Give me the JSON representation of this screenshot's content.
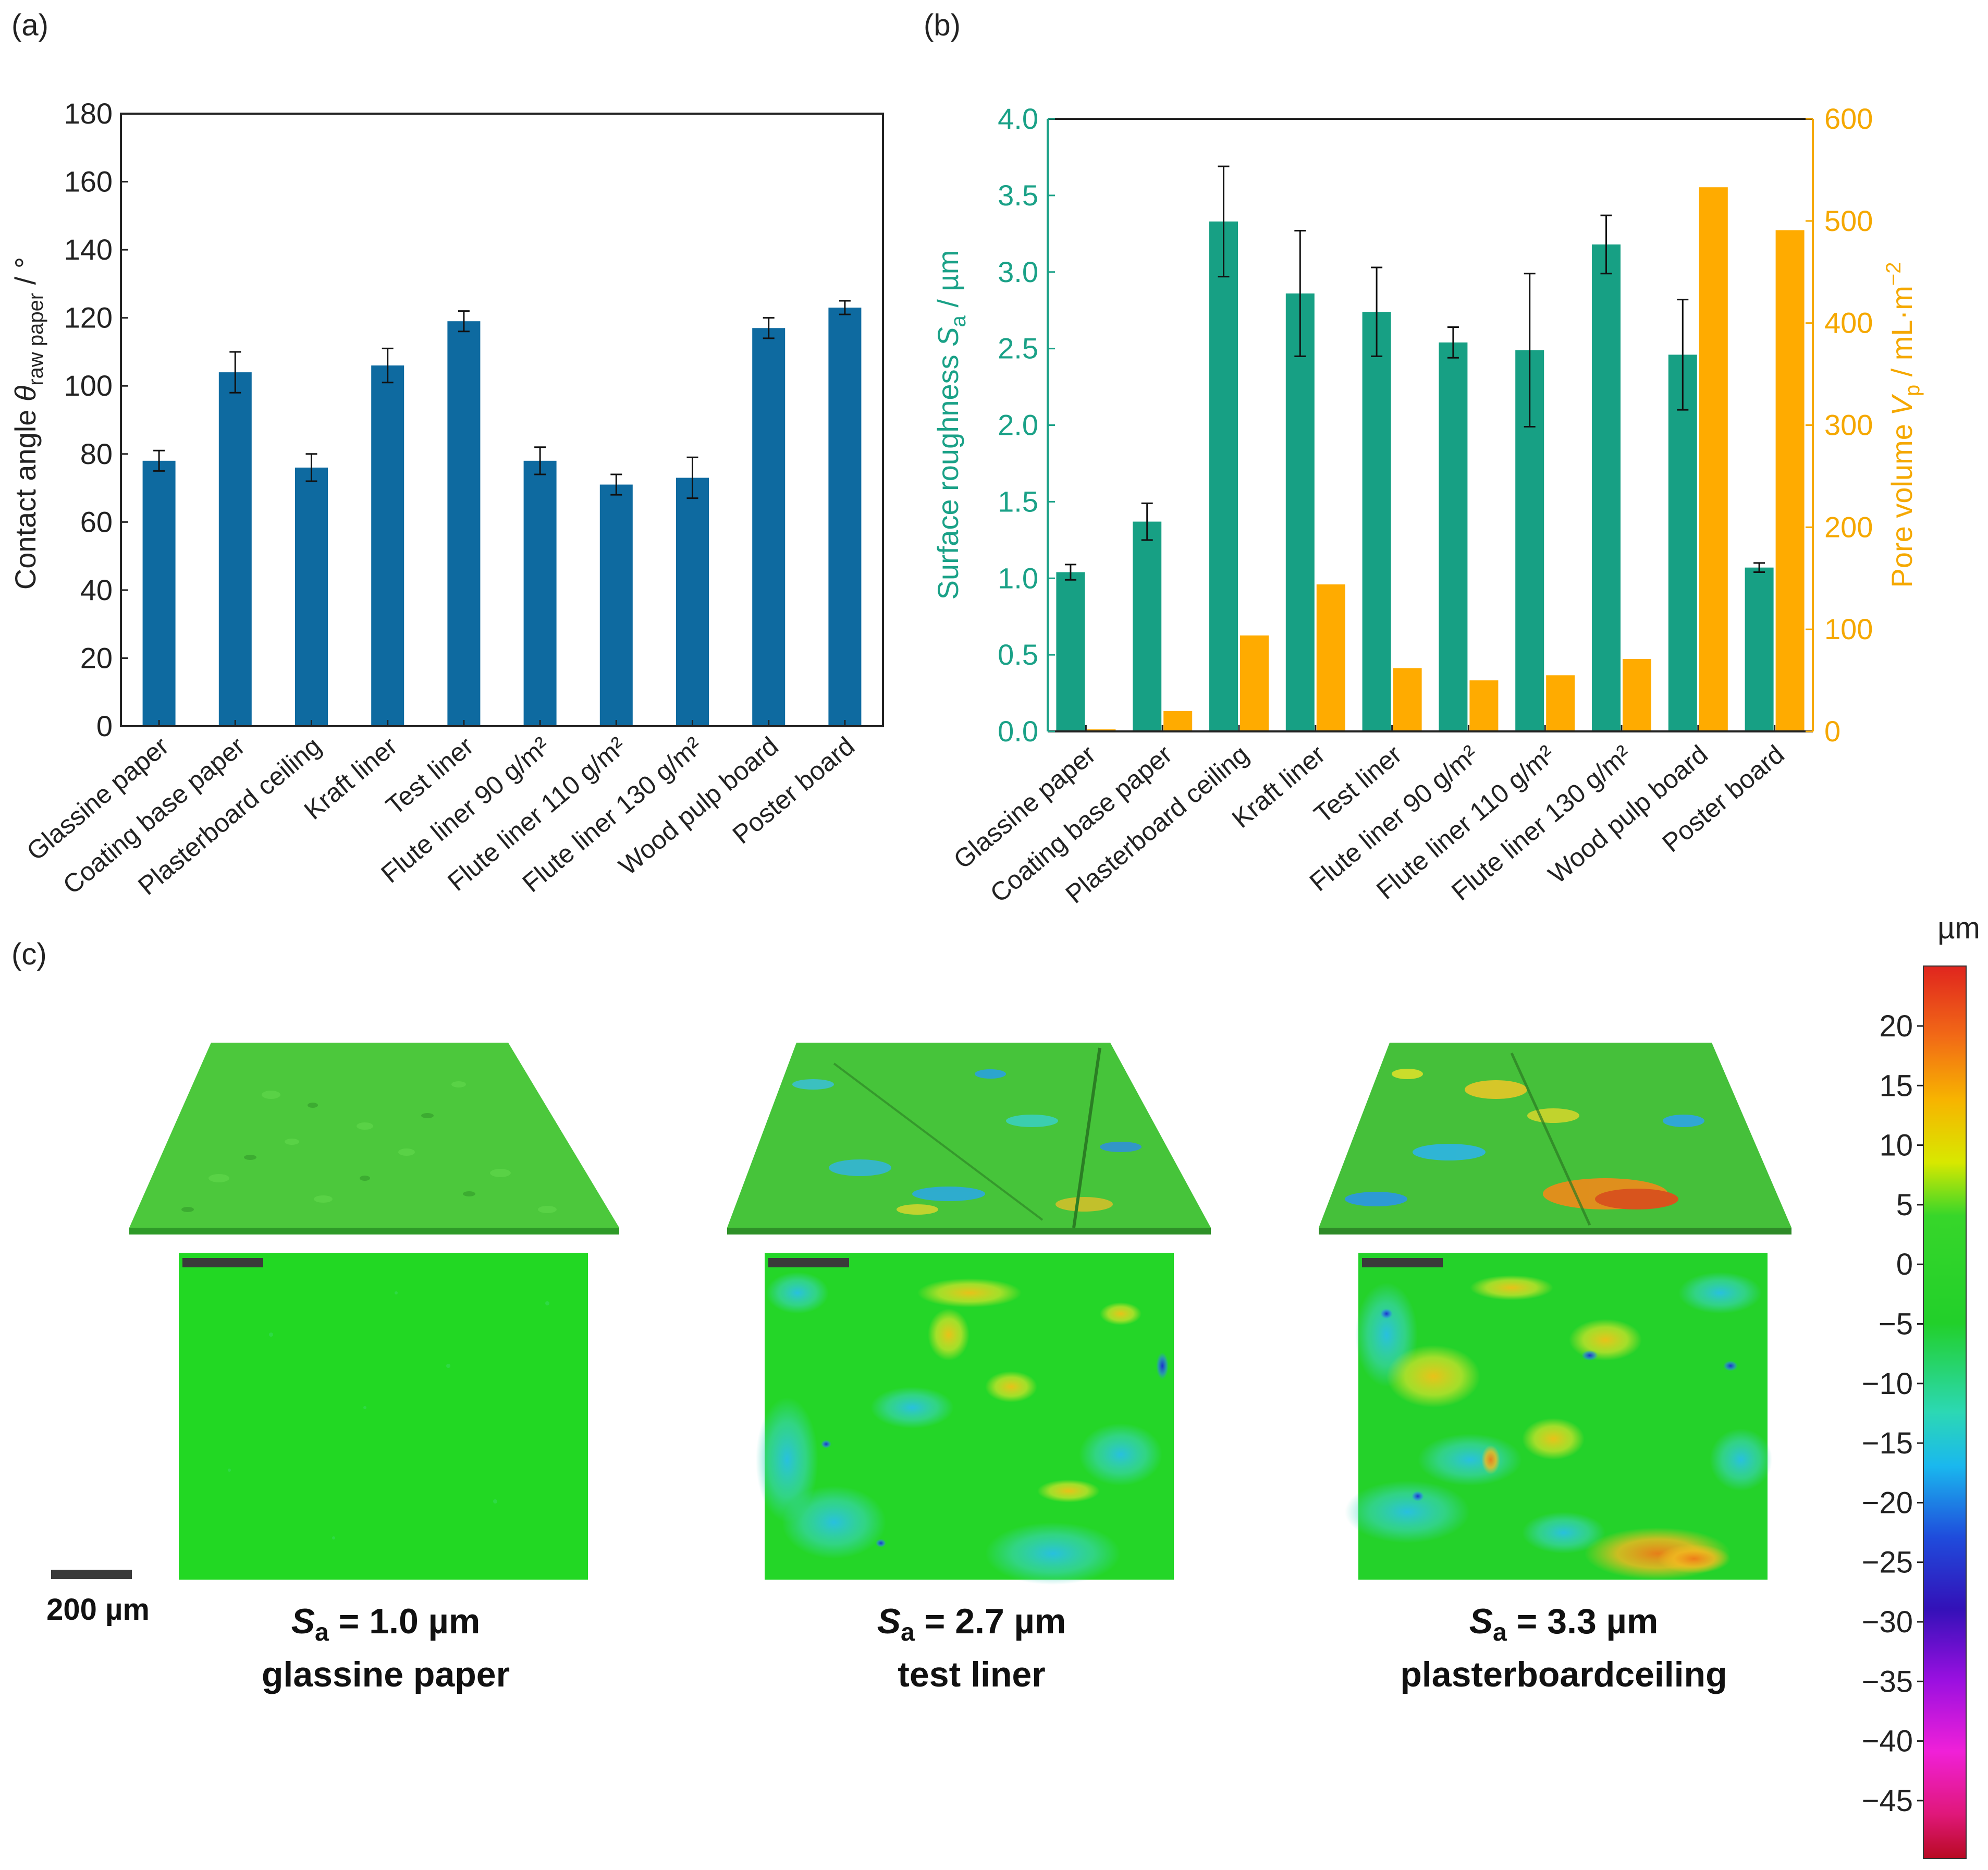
{
  "panels": {
    "a": "(a)",
    "b": "(b)",
    "c": "(c)"
  },
  "colors": {
    "blue_bar": "#0e6aa0",
    "green_bar": "#17a084",
    "orange_bar": "#ffab00",
    "green_axis": "#1aa187",
    "orange_axis": "#f5a800"
  },
  "chart_data": [
    {
      "type": "bar",
      "panel": "a",
      "categories": [
        "Glassine paper",
        "Coating base paper",
        "Plasterboard ceiling",
        "Kraft liner",
        "Test liner",
        "Flute liner 90 g/m²",
        "Flute liner 110 g/m²",
        "Flute liner 130 g/m²",
        "Wood pulp board",
        "Poster board"
      ],
      "values": [
        78,
        104,
        76,
        106,
        119,
        78,
        71,
        73,
        117,
        123
      ],
      "errors": [
        3,
        6,
        4,
        5,
        3,
        4,
        3,
        6,
        3,
        2
      ],
      "ylabel_main": "Contact angle ",
      "ylabel_symbol": "θ",
      "ylabel_sub": "raw paper",
      "ylabel_unit": " / °",
      "ylim": [
        0,
        180
      ],
      "yticks": [
        0,
        20,
        40,
        60,
        80,
        100,
        120,
        140,
        160,
        180
      ],
      "grid": false
    },
    {
      "type": "bar",
      "panel": "b",
      "categories": [
        "Glassine paper",
        "Coating base paper",
        "Plasterboard ceiling",
        "Kraft liner",
        "Test liner",
        "Flute liner 90 g/m²",
        "Flute liner 110 g/m²",
        "Flute liner 130 g/m²",
        "Wood pulp board",
        "Poster board"
      ],
      "series": [
        {
          "axis": "left",
          "values": [
            1.04,
            1.37,
            3.33,
            2.86,
            2.74,
            2.54,
            2.49,
            3.18,
            2.46,
            1.07
          ],
          "errors": [
            0.05,
            0.12,
            0.36,
            0.41,
            0.29,
            0.1,
            0.5,
            0.19,
            0.36,
            0.03
          ]
        },
        {
          "axis": "right",
          "values": [
            2,
            20,
            94,
            144,
            62,
            50,
            55,
            71,
            533,
            491
          ]
        }
      ],
      "ylabel_left": "Surface roughness ",
      "ylabel_left_symbol": "S",
      "ylabel_left_sub": "a",
      "ylabel_left_unit": " / µm",
      "ylabel_right": "Pore volume ",
      "ylabel_right_symbol": "V",
      "ylabel_right_sub": "p",
      "ylabel_right_unit": " / mL·m",
      "ylabel_right_sup": "−2",
      "ylim_left": [
        0,
        4.0
      ],
      "yticks_left": [
        "0.0",
        "0.5",
        "1.0",
        "1.5",
        "2.0",
        "2.5",
        "3.0",
        "3.5",
        "4.0"
      ],
      "ylim_right": [
        0,
        600
      ],
      "yticks_right": [
        "0",
        "100",
        "200",
        "300",
        "400",
        "500",
        "600"
      ],
      "grid": false
    }
  ],
  "panel_c": {
    "samples": [
      {
        "sa_symbol": "S",
        "sa_sub": "a",
        "sa_value": " = 1.0 µm",
        "name": "glassine paper"
      },
      {
        "sa_symbol": "S",
        "sa_sub": "a",
        "sa_value": " = 2.7 µm",
        "name": "test liner"
      },
      {
        "sa_symbol": "S",
        "sa_sub": "a",
        "sa_value": " = 3.3 µm",
        "name": "plasterboardceiling"
      }
    ],
    "scale_bar_label": "200 µm",
    "colorbar_unit": "µm",
    "colorbar_ticks": [
      "20",
      "15",
      "10",
      "5",
      "0",
      "−5",
      "−10",
      "−15",
      "−20",
      "−25",
      "−30",
      "−35",
      "−40",
      "−45"
    ]
  }
}
